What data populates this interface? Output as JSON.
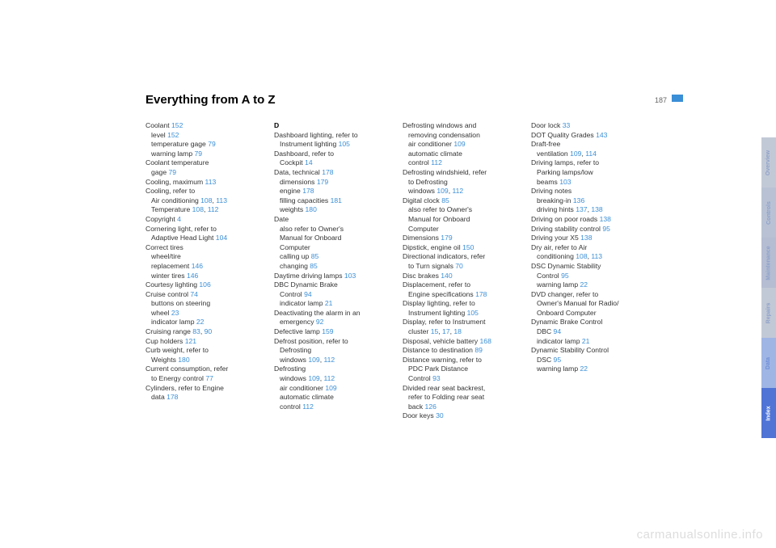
{
  "page_number": "187",
  "title": "Everything from A to Z",
  "watermark": "carmanualsonline.info",
  "tabs": [
    {
      "label": "Overview",
      "bg": "#c2c9d6",
      "fg": "#8fa1c9"
    },
    {
      "label": "Controls",
      "bg": "#b9c2d4",
      "fg": "#8fa1c9"
    },
    {
      "label": "Maintenance",
      "bg": "#b4bdd2",
      "fg": "#8fa1c9"
    },
    {
      "label": "Repairs",
      "bg": "#c2c9d6",
      "fg": "#8fa1c9"
    },
    {
      "label": "Data",
      "bg": "#9fb5e4",
      "fg": "#6f8ed6"
    },
    {
      "label": "Index",
      "bg": "#4f74d6",
      "fg": "#ffffff"
    }
  ],
  "columns": [
    [
      {
        "t": "Coolant ",
        "p": "152"
      },
      {
        "t": "level ",
        "p": "152",
        "sub": true
      },
      {
        "t": "temperature gage ",
        "p": "79",
        "sub": true
      },
      {
        "t": "warning lamp ",
        "p": "79",
        "sub": true
      },
      {
        "t": "Coolant temperature"
      },
      {
        "t": "gage ",
        "p": "79",
        "sub": true
      },
      {
        "t": "Cooling, maximum ",
        "p": "113"
      },
      {
        "t": "Cooling, refer to"
      },
      {
        "t": "Air conditioning ",
        "p": "108, 113",
        "sub": true
      },
      {
        "t": "Temperature ",
        "p": "108, 112",
        "sub": true
      },
      {
        "t": "Copyright ",
        "p": "4"
      },
      {
        "t": "Cornering light, refer to"
      },
      {
        "t": "Adaptive Head Light ",
        "p": "104",
        "sub": true
      },
      {
        "t": "Correct tires"
      },
      {
        "t": "wheel/tire",
        "sub": true
      },
      {
        "t": "replacement ",
        "p": "146",
        "sub": true
      },
      {
        "t": "winter tires ",
        "p": "146",
        "sub": true
      },
      {
        "t": "Courtesy lighting ",
        "p": "106"
      },
      {
        "t": "Cruise control ",
        "p": "74"
      },
      {
        "t": "buttons on steering",
        "sub": true
      },
      {
        "t": "wheel ",
        "p": "23",
        "sub": true
      },
      {
        "t": "indicator lamp ",
        "p": "22",
        "sub": true
      },
      {
        "t": "Cruising range ",
        "p": "83, 90"
      },
      {
        "t": "Cup holders ",
        "p": "121"
      },
      {
        "t": "Curb weight, refer to"
      },
      {
        "t": "Weights ",
        "p": "180",
        "sub": true
      },
      {
        "t": "Current consumption, refer"
      },
      {
        "t": "to Energy control ",
        "p": "77",
        "sub": true
      },
      {
        "t": "Cylinders, refer to Engine"
      },
      {
        "t": "data ",
        "p": "178",
        "sub": true
      }
    ],
    [
      {
        "t": "D",
        "head": true
      },
      {
        "t": "Dashboard lighting, refer to"
      },
      {
        "t": "Instrument lighting ",
        "p": "105",
        "sub": true
      },
      {
        "t": "Dashboard, refer to"
      },
      {
        "t": "Cockpit ",
        "p": "14",
        "sub": true
      },
      {
        "t": "Data, technical ",
        "p": "178"
      },
      {
        "t": "dimensions ",
        "p": "179",
        "sub": true
      },
      {
        "t": "engine ",
        "p": "178",
        "sub": true
      },
      {
        "t": "filling capacities ",
        "p": "181",
        "sub": true
      },
      {
        "t": "weights ",
        "p": "180",
        "sub": true
      },
      {
        "t": "Date"
      },
      {
        "t": "also refer to Owner's",
        "sub": true
      },
      {
        "t": "Manual for Onboard",
        "sub": true
      },
      {
        "t": "Computer",
        "sub": true
      },
      {
        "t": "calling up ",
        "p": "85",
        "sub": true
      },
      {
        "t": "changing ",
        "p": "85",
        "sub": true
      },
      {
        "t": "Daytime driving lamps ",
        "p": "103"
      },
      {
        "t": "DBC Dynamic Brake"
      },
      {
        "t": "Control ",
        "p": "94",
        "sub": true
      },
      {
        "t": "indicator lamp ",
        "p": "21",
        "sub": true
      },
      {
        "t": "Deactivating the alarm in an"
      },
      {
        "t": "emergency ",
        "p": "92",
        "sub": true
      },
      {
        "t": "Defective lamp ",
        "p": "159"
      },
      {
        "t": "Defrost position, refer to"
      },
      {
        "t": "Defrosting",
        "sub": true
      },
      {
        "t": "windows ",
        "p": "109, 112",
        "sub": true
      },
      {
        "t": "Defrosting"
      },
      {
        "t": "windows ",
        "p": "109, 112",
        "sub": true
      },
      {
        "t": "air conditioner ",
        "p": "109",
        "sub": true
      },
      {
        "t": "automatic climate",
        "sub": true
      },
      {
        "t": "control ",
        "p": "112",
        "sub": true
      }
    ],
    [
      {
        "t": "Defrosting windows and"
      },
      {
        "t": "removing condensation",
        "sub": true
      },
      {
        "t": "air conditioner ",
        "p": "109",
        "sub": true
      },
      {
        "t": "automatic climate",
        "sub": true
      },
      {
        "t": "control ",
        "p": "112",
        "sub": true
      },
      {
        "t": "Defrosting windshield, refer"
      },
      {
        "t": "to Defrosting",
        "sub": true
      },
      {
        "t": "windows ",
        "p": "109, 112",
        "sub": true
      },
      {
        "t": "Digital clock ",
        "p": "85"
      },
      {
        "t": "also refer to Owner's",
        "sub": true
      },
      {
        "t": "Manual for Onboard",
        "sub": true
      },
      {
        "t": "Computer",
        "sub": true
      },
      {
        "t": "Dimensions ",
        "p": "179"
      },
      {
        "t": "Dipstick, engine oil ",
        "p": "150"
      },
      {
        "t": "Directional indicators, refer"
      },
      {
        "t": "to Turn signals ",
        "p": "70",
        "sub": true
      },
      {
        "t": "Disc brakes ",
        "p": "140"
      },
      {
        "t": "Displacement, refer to"
      },
      {
        "t": "Engine specifications ",
        "p": "178",
        "sub": true
      },
      {
        "t": "Display lighting, refer to"
      },
      {
        "t": "Instrument lighting ",
        "p": "105",
        "sub": true
      },
      {
        "t": "Display, refer to Instrument"
      },
      {
        "t": "cluster ",
        "p": "15, 17, 18",
        "sub": true
      },
      {
        "t": "Disposal, vehicle battery ",
        "p": "168"
      },
      {
        "t": "Distance to destination ",
        "p": "89"
      },
      {
        "t": "Distance warning, refer to"
      },
      {
        "t": "PDC Park Distance",
        "sub": true
      },
      {
        "t": "Control ",
        "p": "93",
        "sub": true
      },
      {
        "t": "Divided rear seat backrest,"
      },
      {
        "t": "refer to Folding rear seat",
        "sub": true
      },
      {
        "t": "back ",
        "p": "126",
        "sub": true
      },
      {
        "t": "Door keys ",
        "p": "30"
      }
    ],
    [
      {
        "t": "Door lock ",
        "p": "33"
      },
      {
        "t": "DOT Quality Grades ",
        "p": "143"
      },
      {
        "t": "Draft-free"
      },
      {
        "t": "ventilation ",
        "p": "109, 114",
        "sub": true
      },
      {
        "t": "Driving lamps, refer to"
      },
      {
        "t": "Parking lamps/low",
        "sub": true
      },
      {
        "t": "beams ",
        "p": "103",
        "sub": true
      },
      {
        "t": "Driving notes"
      },
      {
        "t": "breaking-in ",
        "p": "136",
        "sub": true
      },
      {
        "t": "driving hints ",
        "p": "137, 138",
        "sub": true
      },
      {
        "t": "Driving on poor roads ",
        "p": "138"
      },
      {
        "t": "Driving stability control ",
        "p": "95"
      },
      {
        "t": "Driving your X5 ",
        "p": "138"
      },
      {
        "t": "Dry air, refer to Air"
      },
      {
        "t": "conditioning ",
        "p": "108, 113",
        "sub": true
      },
      {
        "t": "DSC Dynamic Stability"
      },
      {
        "t": "Control ",
        "p": "95",
        "sub": true
      },
      {
        "t": "warning lamp ",
        "p": "22",
        "sub": true
      },
      {
        "t": "DVD changer, refer to"
      },
      {
        "t": "Owner's Manual for Radio/",
        "sub": true
      },
      {
        "t": "Onboard Computer",
        "sub": true
      },
      {
        "t": "Dynamic Brake Control"
      },
      {
        "t": "DBC ",
        "p": "94",
        "sub": true
      },
      {
        "t": "indicator lamp ",
        "p": "21",
        "sub": true
      },
      {
        "t": "Dynamic Stability Control"
      },
      {
        "t": "DSC ",
        "p": "95",
        "sub": true
      },
      {
        "t": "warning lamp ",
        "p": "22",
        "sub": true
      }
    ]
  ]
}
